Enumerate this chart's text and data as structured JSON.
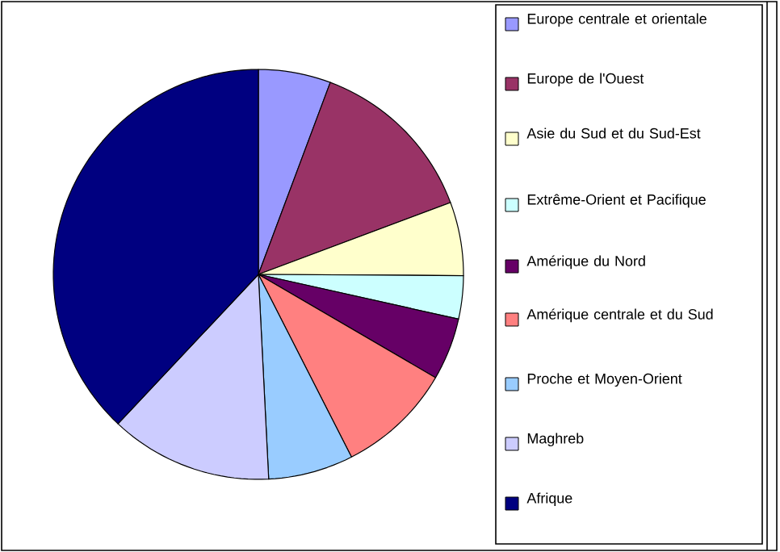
{
  "chart_data": {
    "type": "pie",
    "categories": [
      "Europe centrale et orientale",
      "Europe de l'Ouest",
      "Asie du Sud et du Sud-Est",
      "Extrême-Orient et Pacifique",
      "Amérique du Nord",
      "Amérique centrale et du Sud",
      "Proche et Moyen-Orient",
      "Maghreb",
      "Afrique"
    ],
    "values": [
      5.7,
      13.6,
      5.8,
      3.4,
      4.9,
      9.1,
      6.7,
      12.8,
      38.0
    ],
    "colors": [
      "#9999ff",
      "#993366",
      "#ffffcc",
      "#ccffff",
      "#660066",
      "#ff8080",
      "#99ccff",
      "#ccccff",
      "#000080"
    ],
    "legend": "right"
  }
}
